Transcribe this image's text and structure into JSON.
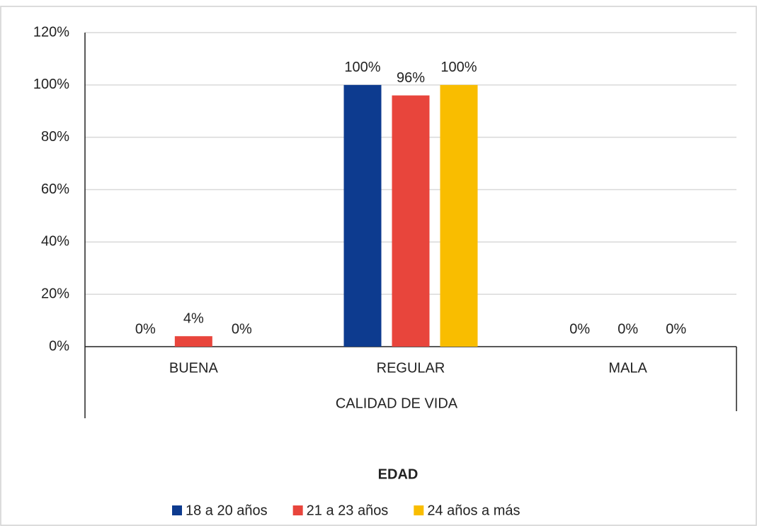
{
  "chart_data": {
    "type": "bar",
    "categories": [
      "BUENA",
      "REGULAR",
      "MALA"
    ],
    "series": [
      {
        "name": "18 a 20 años",
        "color": "#0d3b8f",
        "values": [
          0,
          100,
          0
        ],
        "value_labels": [
          "0%",
          "100%",
          "0%"
        ]
      },
      {
        "name": "21 a 23 años",
        "color": "#e8453c",
        "values": [
          4,
          96,
          0
        ],
        "value_labels": [
          "4%",
          "96%",
          "0%"
        ]
      },
      {
        "name": "24 años a más",
        "color": "#f9bd00",
        "values": [
          0,
          100,
          0
        ],
        "value_labels": [
          "0%",
          "100%",
          "0%"
        ]
      }
    ],
    "xlabel": "CALIDAD DE VIDA",
    "legend_title": "EDAD",
    "ylim": [
      0,
      120
    ],
    "yticks": [
      {
        "value": 0,
        "label": "0%"
      },
      {
        "value": 20,
        "label": "20%"
      },
      {
        "value": 40,
        "label": "40%"
      },
      {
        "value": 60,
        "label": "60%"
      },
      {
        "value": 80,
        "label": "80%"
      },
      {
        "value": 100,
        "label": "100%"
      },
      {
        "value": 120,
        "label": "120%"
      }
    ],
    "grid": true,
    "legend": "bottom"
  }
}
